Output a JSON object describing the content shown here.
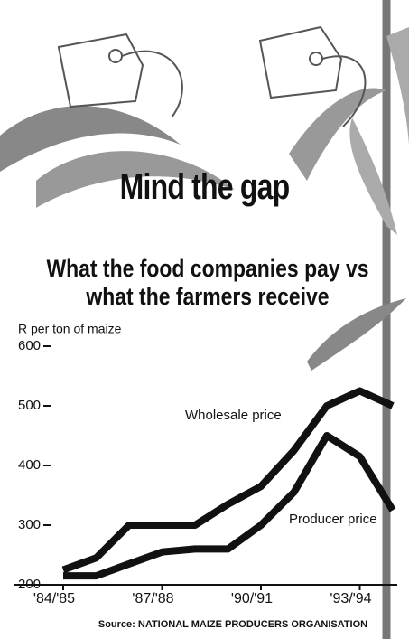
{
  "chart_data": {
    "type": "line",
    "title": "Mind the gap",
    "subtitle": "What the food companies pay vs what the farmers receive",
    "y_label": "R per ton of maize",
    "source": "Source: NATIONAL MAIZE PRODUCERS ORGANISATION",
    "categories": [
      "'84/'85",
      null,
      null,
      "'87/'88",
      null,
      null,
      "'90/'91",
      null,
      null,
      "'93/'94",
      null
    ],
    "series": [
      {
        "name": "Wholesale price",
        "color": "#111111",
        "values": [
          225,
          245,
          300,
          300,
          300,
          335,
          365,
          425,
          500,
          525,
          500
        ]
      },
      {
        "name": "Producer price",
        "color": "#111111",
        "values": [
          215,
          215,
          235,
          255,
          260,
          260,
          300,
          355,
          450,
          415,
          325
        ]
      }
    ],
    "ylim": [
      200,
      600
    ],
    "yticks": [
      200,
      300,
      400,
      500,
      600
    ],
    "grid": false
  }
}
